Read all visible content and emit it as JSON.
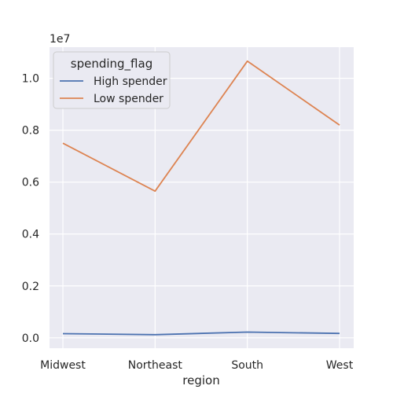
{
  "chart_data": {
    "type": "line",
    "xlabel": "region",
    "ylabel": "",
    "y_offset_label": "1e7",
    "categories": [
      "Midwest",
      "Northeast",
      "South",
      "West"
    ],
    "y_scale_multiplier": 10000000,
    "ylim": [
      -0.04,
      1.12
    ],
    "yticks": [
      0.0,
      0.2,
      0.4,
      0.6,
      0.8,
      1.0
    ],
    "ytick_labels": [
      "0.0",
      "0.2",
      "0.4",
      "0.6",
      "0.8",
      "1.0"
    ],
    "grid": true,
    "legend": {
      "title": "spending_flag",
      "placement": "top-left"
    },
    "series": [
      {
        "name": "High spender",
        "color": "#4c72b0",
        "values": [
          0.016,
          0.012,
          0.022,
          0.017
        ]
      },
      {
        "name": "Low spender",
        "color": "#dd8452",
        "values": [
          0.75,
          0.565,
          1.066,
          0.82
        ]
      }
    ]
  }
}
